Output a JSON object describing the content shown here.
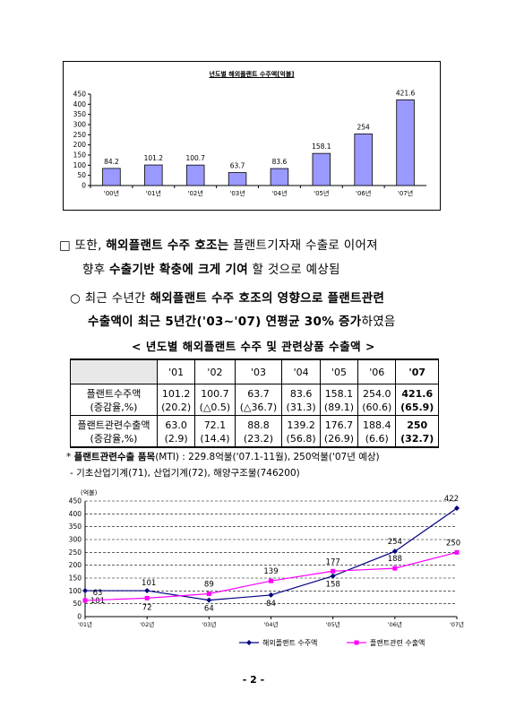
{
  "bar_chart_title": "년도별 해외플랜트 수주액[억불]",
  "para1": {
    "marker": "□",
    "line1": [
      {
        "t": "또한, ",
        "b": false
      },
      {
        "t": "해외플랜트 수주 호조는",
        "b": true
      },
      {
        "t": " 플랜트기자재 수출로 이어져",
        "b": false
      }
    ],
    "line2": [
      {
        "t": "향후 ",
        "b": false
      },
      {
        "t": "수출기반 확충에 크게 기여",
        "b": true
      },
      {
        "t": " 할 것으로 예상됨",
        "b": false
      }
    ]
  },
  "para2": {
    "marker": "○",
    "line1": [
      {
        "t": "최근 수년간 ",
        "b": false
      },
      {
        "t": "해외플랜트 수주 호조의 영향으로 플랜트관련",
        "b": true
      }
    ],
    "line2": [
      {
        "t": "수출액이 최근 5년간('03∼'07) 연평균 30% 증가",
        "b": true
      },
      {
        "t": "하였음",
        "b": false
      }
    ]
  },
  "table_caption": "< 년도별 해외플랜트 수주 및 관련상품 수출액 >",
  "table": {
    "years": [
      "'01",
      "'02",
      "'03",
      "'04",
      "'05",
      "'06",
      "'07"
    ],
    "rows": [
      {
        "label": "플랜트수주액",
        "values": [
          "101.2",
          "100.7",
          "63.7",
          "83.6",
          "158.1",
          "254.0",
          "421.6"
        ]
      },
      {
        "label": "(증감율,%)",
        "values": [
          "(20.2)",
          "(△0.5)",
          "(△36.7)",
          "(31.3)",
          "(89.1)",
          "(60.6)",
          "(65.9)"
        ]
      },
      {
        "label": "플랜트관련수출액",
        "values": [
          "63.0",
          "72.1",
          "88.8",
          "139.2",
          "176.7",
          "188.4",
          "250"
        ]
      },
      {
        "label": "(증감율,%)",
        "values": [
          "(2.9)",
          "(14.4)",
          "(23.2)",
          "(56.8)",
          "(26.9)",
          "(6.6)",
          "(32.7)"
        ]
      }
    ]
  },
  "notes": {
    "note1_prefix": "*",
    "note1_bold": "플랜트관련수출 품목",
    "note1_rest": "(MTI) : 229.8억불('07.1-11월), 250억불('07년 예상)",
    "note2": "- 기초산업기계(71), 산업기계(72), 해양구조물(746200)"
  },
  "page_number": "- 2 -",
  "colors": {
    "bar_fill": "#9999ff",
    "series1": "#000080",
    "series2": "#ff00ff"
  },
  "chart_data": [
    {
      "type": "bar",
      "title": "년도별 해외플랜트 수주액[억불]",
      "categories": [
        "'00년",
        "'01년",
        "'02년",
        "'03년",
        "'04년",
        "'05년",
        "'06년",
        "'07년"
      ],
      "values": [
        84.2,
        101.2,
        100.7,
        63.7,
        83.6,
        158.1,
        254,
        421.6
      ],
      "value_labels": [
        "84.2",
        "101.2",
        "100.7",
        "63.7",
        "83.6",
        "158.1",
        "254",
        "421.6"
      ],
      "yticks": [
        "0",
        "50",
        "100",
        "150",
        "200",
        "250",
        "300",
        "350",
        "400",
        "450"
      ],
      "ylim": [
        0,
        450
      ],
      "grid": false,
      "legend": "none"
    },
    {
      "type": "line",
      "unit_label": "(억불)",
      "categories": [
        "'01년",
        "'02년",
        "'03년",
        "'04년",
        "'05년",
        "'06년",
        "'07년"
      ],
      "yticks": [
        "0",
        "50",
        "100",
        "150",
        "200",
        "250",
        "300",
        "350",
        "400",
        "450"
      ],
      "ylim": [
        0,
        450
      ],
      "grid": true,
      "legend": "bottom",
      "series": [
        {
          "name": "해외플랜트 수주액",
          "values": [
            101,
            101,
            64,
            84,
            158,
            254,
            422
          ],
          "labels": [
            "101",
            "101",
            "64",
            "84",
            "158",
            "254",
            "422"
          ],
          "marker": "diamond"
        },
        {
          "name": "플랜트관련 수출액",
          "values": [
            63,
            72,
            89,
            139,
            177,
            188,
            250
          ],
          "labels": [
            "63",
            "72",
            "89",
            "139",
            "177",
            "188",
            "250"
          ],
          "marker": "square"
        }
      ]
    }
  ]
}
